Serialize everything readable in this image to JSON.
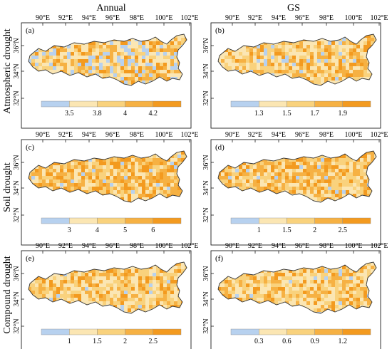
{
  "columns": [
    "Annual",
    "GS"
  ],
  "rows": [
    "Atmospheric drought",
    "Soil drought",
    "Compound drought"
  ],
  "lon_ticks": [
    "90°E",
    "92°E",
    "94°E",
    "96°E",
    "98°E",
    "100°E",
    "102°E"
  ],
  "lat_ticks": [
    "36°N",
    "34°N",
    "32°N"
  ],
  "panels": [
    {
      "label": "(a)",
      "colorbar": [
        "3.5",
        "3.8",
        "4",
        "4.2"
      ],
      "class_colors": [
        "#b7d1ef",
        "#fbe6b3",
        "#f9d27d",
        "#f6b143",
        "#f39a1f"
      ]
    },
    {
      "label": "(b)",
      "colorbar": [
        "1.3",
        "1.5",
        "1.7",
        "1.9"
      ],
      "class_colors": [
        "#b7d1ef",
        "#fbe6b3",
        "#f9d27d",
        "#f6b143",
        "#f39a1f"
      ]
    },
    {
      "label": "(c)",
      "colorbar": [
        "3",
        "4",
        "5",
        "6"
      ],
      "class_colors": [
        "#b7d1ef",
        "#fbe6b3",
        "#f9d27d",
        "#f6b143",
        "#f39a1f"
      ]
    },
    {
      "label": "(d)",
      "colorbar": [
        "1",
        "1.5",
        "2",
        "2.5"
      ],
      "class_colors": [
        "#b7d1ef",
        "#fbe6b3",
        "#f9d27d",
        "#f6b143",
        "#f39a1f"
      ]
    },
    {
      "label": "(e)",
      "colorbar": [
        "1",
        "1.5",
        "2",
        "2.5"
      ],
      "class_colors": [
        "#b7d1ef",
        "#fbe6b3",
        "#f9d27d",
        "#f6b143",
        "#f39a1f"
      ]
    },
    {
      "label": "(f)",
      "colorbar": [
        "0.3",
        "0.6",
        "0.9",
        "1.2"
      ],
      "class_colors": [
        "#b7d1ef",
        "#fbe6b3",
        "#f9d27d",
        "#f6b143",
        "#f39a1f"
      ]
    }
  ]
}
